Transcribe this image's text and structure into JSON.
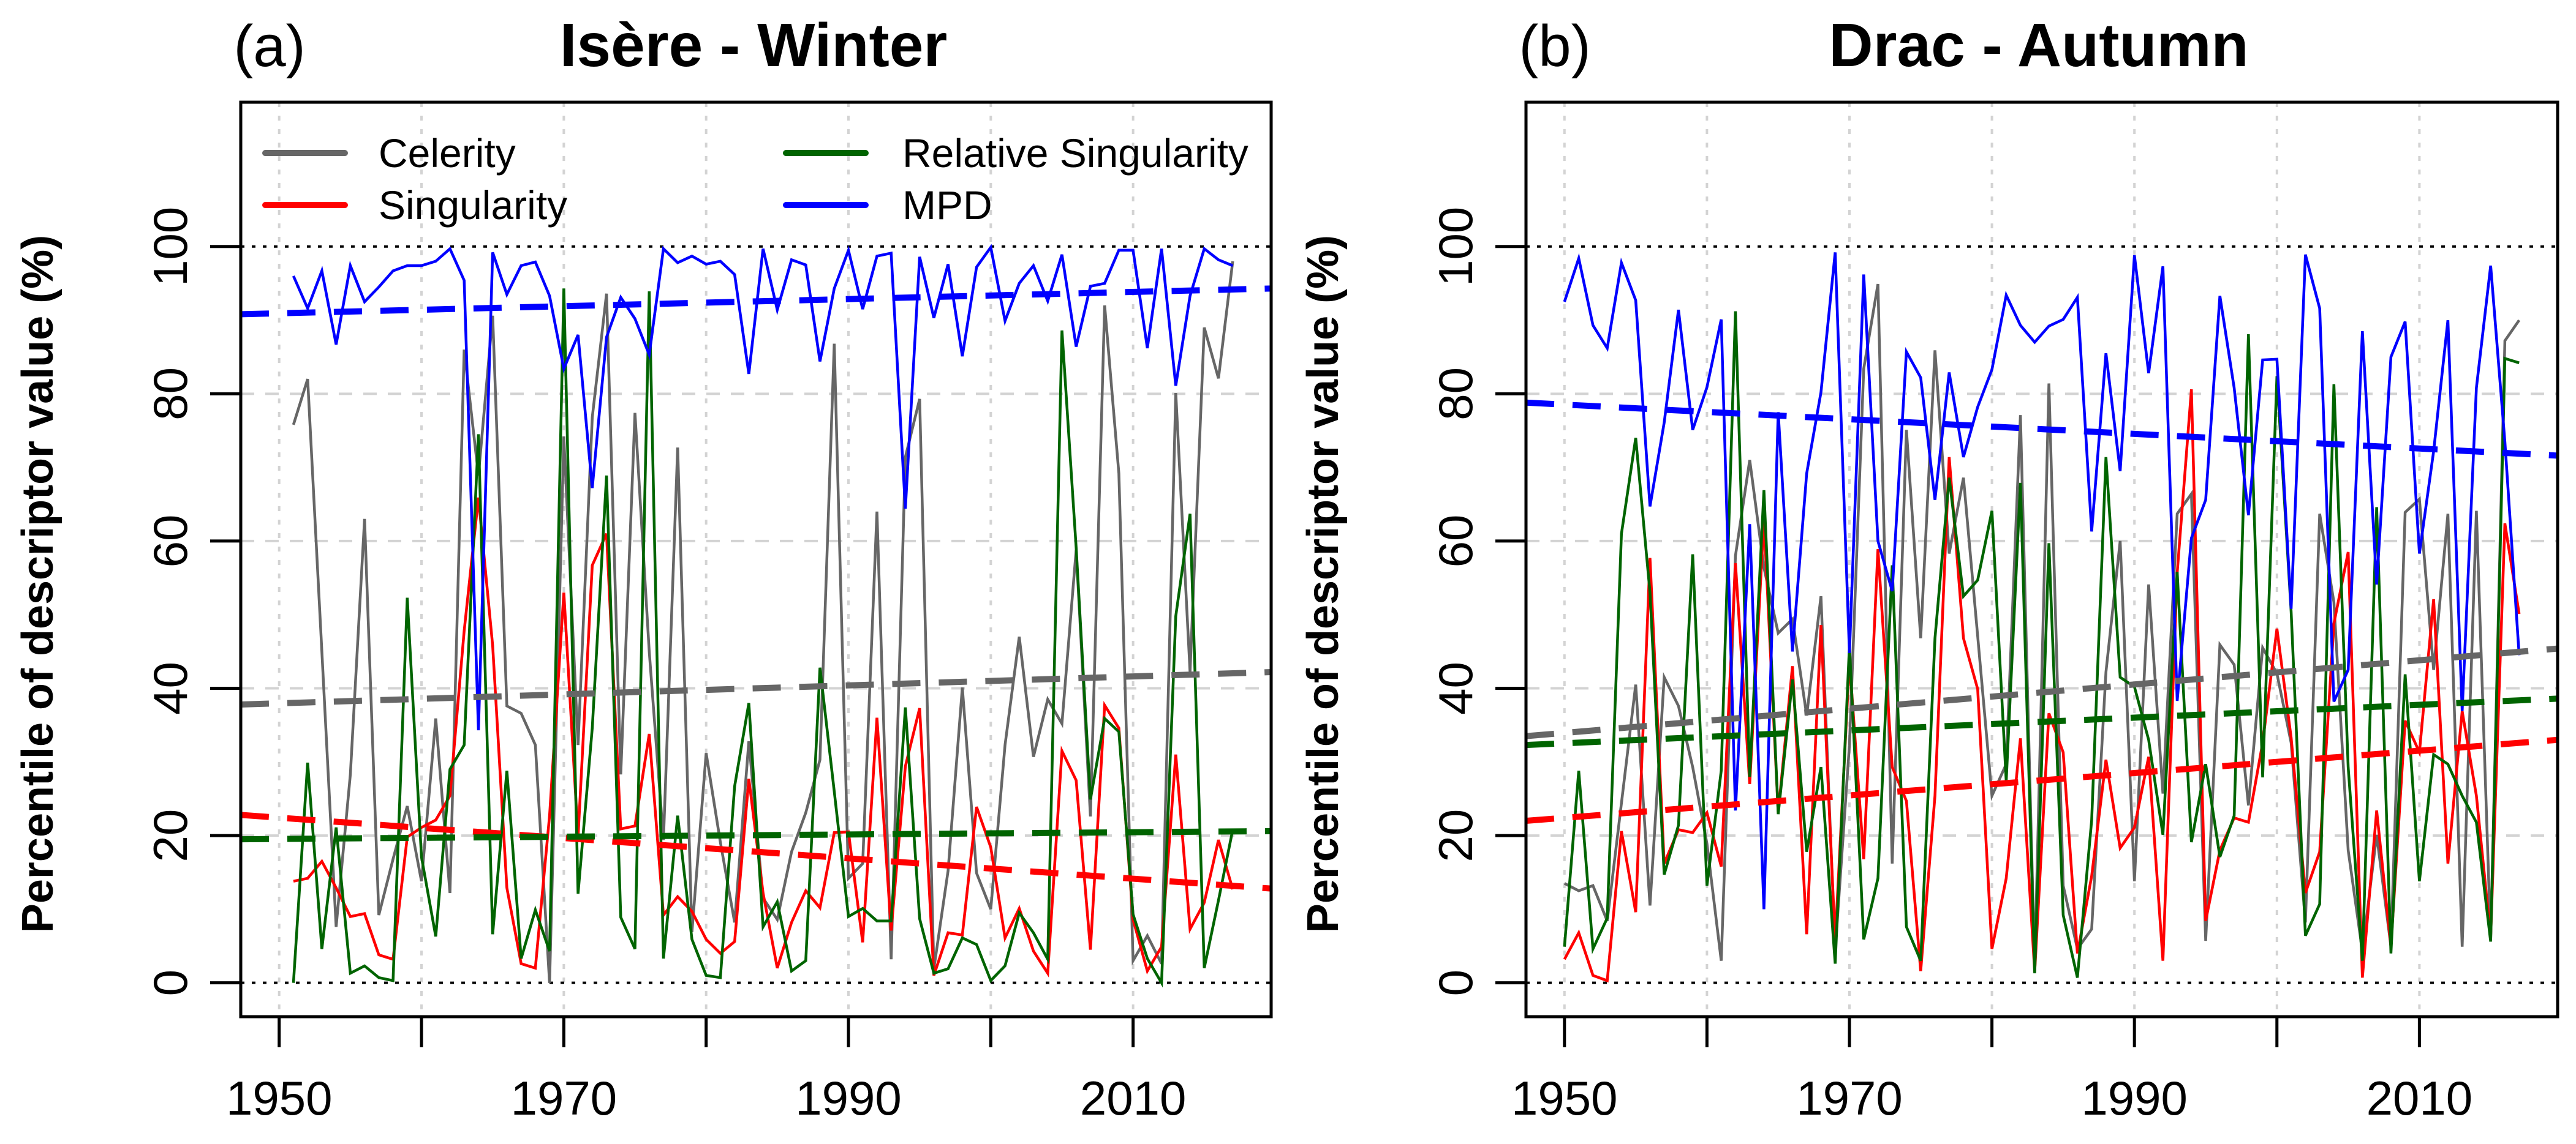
{
  "chart_data": [
    {
      "type": "line",
      "panel_label": "(a)",
      "title": "Isère - Winter",
      "xlabel": "",
      "ylabel": "Percentile of descriptor value (%)",
      "xlim": [
        1947.3,
        2019.7
      ],
      "ylim": [
        -4.6,
        119.6
      ],
      "x_ticks": [
        1950,
        1960,
        1970,
        1980,
        1990,
        2000,
        2010
      ],
      "x_tick_labels": [
        {
          "value": 1950,
          "label": "1950"
        },
        {
          "value": 1970,
          "label": "1970"
        },
        {
          "value": 1990,
          "label": "1990"
        },
        {
          "value": 2010,
          "label": "2010"
        }
      ],
      "y_ticks": [
        {
          "value": 0,
          "label": "0"
        },
        {
          "value": 20,
          "label": "20"
        },
        {
          "value": 40,
          "label": "40"
        },
        {
          "value": 60,
          "label": "60"
        },
        {
          "value": 80,
          "label": "80"
        },
        {
          "value": 100,
          "label": "100"
        }
      ],
      "grid": true,
      "reference_lines": [
        0,
        100
      ],
      "legend": {
        "placement": "top",
        "entries": [
          {
            "name": "Celerity",
            "color": "#666666"
          },
          {
            "name": "Singularity",
            "color": "#ff0000"
          },
          {
            "name": "Relative Singularity",
            "color": "#006400"
          },
          {
            "name": "MPD",
            "color": "#0000ff"
          }
        ]
      },
      "x_start": 1951,
      "series": [
        {
          "name": "Celerity",
          "color": "#666666",
          "values": [
            75.8,
            82,
            45,
            7.6,
            28.3,
            63,
            9.2,
            16.8,
            24,
            13.8,
            35.9,
            12.2,
            86,
            68.9,
            90.6,
            37.6,
            36.6,
            32.3,
            0,
            74.2,
            32.3,
            76.8,
            93.6,
            28.3,
            77.4,
            45,
            19.4,
            72.7,
            6.9,
            31.2,
            19.1,
            8.2,
            32.8,
            11.5,
            8.6,
            17.8,
            23.1,
            30.3,
            86.8,
            14.2,
            16.2,
            64,
            3.2,
            71.4,
            79.3,
            1.9,
            15.2,
            40.1,
            14.9,
            10,
            32.3,
            47,
            30.7,
            38.5,
            35.2,
            58.8,
            22.6,
            92,
            69.2,
            3,
            6.4,
            2.6,
            80.1,
            42.2,
            89,
            82.1,
            98
          ],
          "trend": {
            "x": [
              1947.3,
              2019.7
            ],
            "y": [
              37.8,
              42.2
            ]
          }
        },
        {
          "name": "Singularity",
          "color": "#ff0000",
          "values": [
            13.8,
            14.2,
            16.5,
            12.9,
            9,
            9.4,
            3.8,
            3.2,
            19.8,
            21.1,
            22.1,
            25.4,
            47.8,
            65.9,
            45.8,
            12.9,
            2.6,
            2,
            22.7,
            53,
            19.8,
            56.7,
            61,
            20.9,
            21.3,
            33.8,
            9.2,
            11.7,
            9.7,
            5.9,
            4,
            5.6,
            27.7,
            12.2,
            2,
            8.2,
            12.5,
            10.2,
            20.4,
            20.5,
            5.5,
            36,
            7.1,
            29.4,
            37.3,
            1,
            6.8,
            6.5,
            23.9,
            18.4,
            6.1,
            10.1,
            4.3,
            1.3,
            31.5,
            27.5,
            4.5,
            37.7,
            34.6,
            8.6,
            1.6,
            4.9,
            31,
            7.3,
            10.9,
            19.4,
            12.7
          ],
          "trend": {
            "x": [
              1947.3,
              2019.7
            ],
            "y": [
              22.8,
              12.8
            ]
          }
        },
        {
          "name": "Relative Singularity",
          "color": "#006400",
          "values": [
            0,
            29.9,
            4.6,
            21.1,
            1.3,
            2.3,
            0.7,
            0.3,
            52.3,
            17.1,
            6.3,
            29,
            32.3,
            74.5,
            6.6,
            28.8,
            3.3,
            9.9,
            4.3,
            94.3,
            12.1,
            34.6,
            68.9,
            8.9,
            4.6,
            93.9,
            3.3,
            22.7,
            5.9,
            1,
            0.7,
            26.7,
            38,
            7.6,
            11,
            1.6,
            3,
            42.8,
            26,
            9,
            10.1,
            8.4,
            8.4,
            37.4,
            8.7,
            1.3,
            1.9,
            6.1,
            5.2,
            0.3,
            2.3,
            9.5,
            6.8,
            3.2,
            88.6,
            59.1,
            24.9,
            35.9,
            34.1,
            9.3,
            3.3,
            0,
            49.8,
            63.7,
            2,
            11.2,
            20.8
          ],
          "trend": {
            "x": [
              1947.3,
              2019.7
            ],
            "y": [
              19.5,
              20.6
            ]
          }
        },
        {
          "name": "MPD",
          "color": "#0000ff",
          "values": [
            96,
            91.6,
            96.7,
            86.7,
            97.4,
            92.5,
            94.5,
            96.7,
            97.4,
            97.4,
            98,
            99.7,
            95.4,
            34.3,
            99.2,
            93.5,
            97.4,
            97.9,
            93.3,
            83.4,
            88,
            67.2,
            87.7,
            93.1,
            90.2,
            85.3,
            99.7,
            97.8,
            98.7,
            97.6,
            98,
            96.2,
            82.7,
            99.7,
            91.4,
            98.2,
            97.5,
            84.4,
            94.3,
            99.5,
            91.5,
            98.7,
            99.1,
            64.4,
            98.6,
            90.3,
            97.6,
            85.1,
            97.2,
            99.9,
            89.9,
            95,
            97.4,
            92.6,
            98.9,
            86.4,
            94.6,
            95,
            99.5,
            99.5,
            86.2,
            99.7,
            81.1,
            93.3,
            99.7,
            98.2,
            97.4
          ],
          "trend": {
            "x": [
              1947.3,
              2019.7
            ],
            "y": [
              90.8,
              94.3
            ]
          }
        }
      ]
    },
    {
      "type": "line",
      "panel_label": "(b)",
      "title": "Drac - Autumn",
      "xlabel": "",
      "ylabel": "Percentile of descriptor value (%)",
      "xlim": [
        1947.3,
        2019.7
      ],
      "ylim": [
        -4.6,
        119.6
      ],
      "x_ticks": [
        1950,
        1960,
        1970,
        1980,
        1990,
        2000,
        2010
      ],
      "x_tick_labels": [
        {
          "value": 1950,
          "label": "1950"
        },
        {
          "value": 1970,
          "label": "1970"
        },
        {
          "value": 1990,
          "label": "1990"
        },
        {
          "value": 2010,
          "label": "2010"
        }
      ],
      "y_ticks": [
        {
          "value": 0,
          "label": "0"
        },
        {
          "value": 20,
          "label": "20"
        },
        {
          "value": 40,
          "label": "40"
        },
        {
          "value": 60,
          "label": "60"
        },
        {
          "value": 80,
          "label": "80"
        },
        {
          "value": 100,
          "label": "100"
        }
      ],
      "grid": true,
      "reference_lines": [
        0,
        100
      ],
      "legend": null,
      "x_start": 1950,
      "series": [
        {
          "name": "Celerity",
          "color": "#666666",
          "values": [
            13.5,
            12.5,
            13.2,
            8.4,
            24.4,
            40.5,
            10.5,
            41.5,
            37.6,
            29.3,
            18.9,
            3,
            58,
            71,
            56.4,
            47.5,
            49.4,
            36.3,
            52.5,
            4.3,
            32.3,
            83.4,
            94.9,
            16.2,
            75.1,
            46.8,
            85.9,
            58.3,
            68.6,
            47.1,
            25.4,
            29.7,
            77.1,
            2,
            81.4,
            13.2,
            4.6,
            7.3,
            42.2,
            60,
            13.8,
            54.1,
            25.7,
            63.7,
            66.4,
            5.7,
            45.9,
            43.2,
            24.1,
            45.5,
            42,
            32.6,
            8.2,
            63.7,
            51.7,
            18,
            4.3,
            20.1,
            4.9,
            63.9,
            65.7,
            42.5,
            63.7,
            4.9,
            64.1,
            5.9,
            87.2,
            90
          ],
          "trend": {
            "x": [
              1947.3,
              2019.7
            ],
            "y": [
              33.5,
              45.4
            ]
          }
        },
        {
          "name": "Singularity",
          "color": "#ff0000",
          "values": [
            3.2,
            6.8,
            1,
            0.3,
            20.6,
            9.6,
            57.7,
            16.2,
            20.8,
            20.4,
            23.1,
            15.8,
            57,
            27,
            63,
            23.1,
            43,
            6.6,
            48.6,
            5.6,
            43.8,
            16.8,
            58.9,
            29.3,
            24.7,
            1.6,
            25.4,
            71.4,
            46.8,
            39.9,
            4.6,
            14.2,
            33.2,
            1.5,
            36.6,
            31.3,
            4,
            14.5,
            30.3,
            18.3,
            21.1,
            30.7,
            3,
            55.7,
            80.6,
            8.4,
            18,
            22.4,
            21.8,
            32.6,
            48.1,
            33.3,
            12.2,
            17.8,
            48.8,
            58.5,
            0.7,
            23.4,
            4.9,
            35.6,
            31.3,
            52.1,
            16.2,
            36.9,
            25.4,
            6.3,
            62.4,
            50.1
          ],
          "trend": {
            "x": [
              1947.3,
              2019.7
            ],
            "y": [
              22.0,
              33.0
            ]
          }
        },
        {
          "name": "Relative Singularity",
          "color": "#006400",
          "values": [
            4.9,
            28.8,
            4.6,
            8.8,
            61,
            74,
            53,
            14.7,
            21.4,
            58.2,
            13.2,
            28.8,
            91.2,
            28,
            66.9,
            22.9,
            41.2,
            17.8,
            29.3,
            2.6,
            45.8,
            5.9,
            14.2,
            56.7,
            7.6,
            3,
            46.8,
            68.6,
            52.5,
            54.7,
            64.1,
            27.4,
            67.9,
            1.3,
            59.7,
            9.2,
            0.7,
            22.1,
            71.4,
            41.5,
            40.2,
            33,
            20.1,
            55.8,
            19.1,
            29.7,
            17.1,
            22.7,
            88.1,
            27.9,
            82.4,
            50.4,
            6.4,
            10.7,
            81.3,
            29.3,
            3,
            64.6,
            4,
            41.9,
            13.8,
            31,
            29.7,
            25.4,
            21.8,
            5.6,
            84.8,
            84.2
          ],
          "trend": {
            "x": [
              1947.3,
              2019.7
            ],
            "y": [
              32.3,
              38.6
            ]
          }
        },
        {
          "name": "MPD",
          "color": "#0000ff",
          "values": [
            92.5,
            98.4,
            89.3,
            86.2,
            97.8,
            92.7,
            64.7,
            76.1,
            91.4,
            75.1,
            80.9,
            90.1,
            23.4,
            62.3,
            10,
            77.5,
            45,
            69.2,
            80.2,
            99.2,
            44.8,
            96.2,
            60,
            53.2,
            85.7,
            82.2,
            65.6,
            82.9,
            71.4,
            78.2,
            83.3,
            93.4,
            89.3,
            87,
            89.2,
            90.1,
            93.1,
            61.3,
            85.5,
            69.5,
            98.8,
            82.8,
            97.3,
            38.3,
            60.4,
            65.6,
            93.3,
            80.8,
            63.5,
            84.6,
            84.7,
            50.8,
            98.9,
            91.6,
            38.2,
            42.5,
            88.5,
            54.1,
            85,
            89.8,
            58.3,
            72.2,
            90,
            36.9,
            80.8,
            97.4,
            73.5,
            44.5
          ],
          "trend": {
            "x": [
              1947.3,
              2019.7
            ],
            "y": [
              78.8,
              71.6
            ]
          }
        }
      ]
    }
  ]
}
